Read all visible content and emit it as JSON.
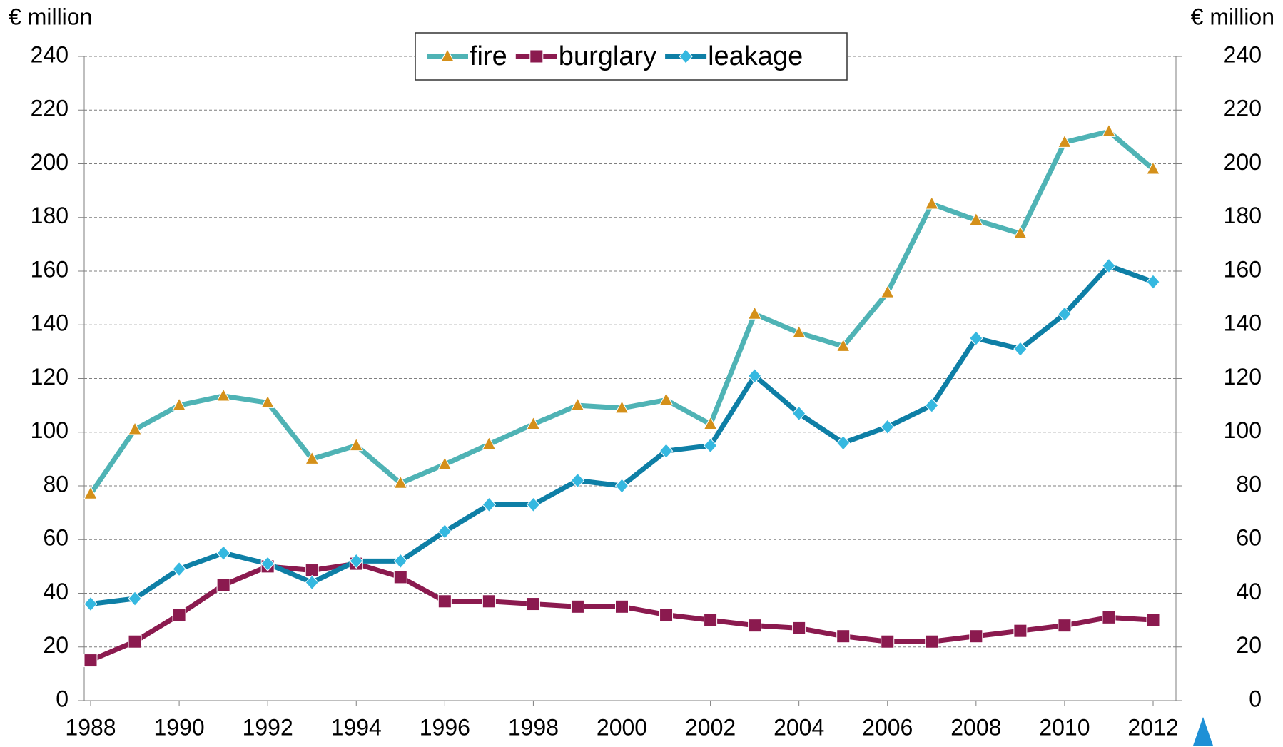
{
  "chart_data": {
    "type": "line",
    "y_label": "€ million",
    "y2_label": "€ million",
    "x": [
      1988,
      1989,
      1990,
      1991,
      1992,
      1993,
      1994,
      1995,
      1996,
      1997,
      1998,
      1999,
      2000,
      2001,
      2002,
      2003,
      2004,
      2005,
      2006,
      2007,
      2008,
      2009,
      2010,
      2011,
      2012
    ],
    "xlim": [
      1988,
      2012
    ],
    "xticks": [
      1988,
      1990,
      1992,
      1994,
      1996,
      1998,
      2000,
      2002,
      2004,
      2006,
      2008,
      2010,
      2012
    ],
    "ylim": [
      0,
      240
    ],
    "yticks": [
      0,
      20,
      40,
      60,
      80,
      100,
      120,
      140,
      160,
      180,
      200,
      220,
      240
    ],
    "y2lim": [
      0,
      240
    ],
    "y2ticks": [
      0,
      20,
      40,
      60,
      80,
      100,
      120,
      140,
      160,
      180,
      200,
      220,
      240
    ],
    "grid": true,
    "legend": "top",
    "series": [
      {
        "name": "fire",
        "color": "#4fb3b5",
        "marker": "triangle",
        "marker_color": "#d4901a",
        "values": [
          77,
          101,
          110,
          113.5,
          111,
          90,
          95,
          81,
          88,
          95.5,
          103,
          110,
          109,
          112,
          103,
          144,
          137,
          132,
          152,
          185,
          179,
          174,
          208,
          212,
          198
        ]
      },
      {
        "name": "burglary",
        "color": "#8b1a4f",
        "marker": "square",
        "marker_color": "#8b1a4f",
        "values": [
          15,
          22,
          32,
          43,
          50,
          48.5,
          51,
          46,
          37,
          37,
          36,
          35,
          35,
          32,
          30,
          28,
          27,
          24,
          22,
          22,
          24,
          26,
          28,
          31,
          30
        ]
      },
      {
        "name": "leakage",
        "color": "#0e7fa6",
        "marker": "diamond",
        "marker_color": "#35b8e0",
        "values": [
          36,
          38,
          49,
          55,
          51,
          44,
          52,
          52,
          63,
          73,
          73,
          82,
          80,
          93,
          95,
          121,
          107,
          96,
          102,
          110,
          135,
          131,
          144,
          162,
          156
        ]
      }
    ]
  }
}
